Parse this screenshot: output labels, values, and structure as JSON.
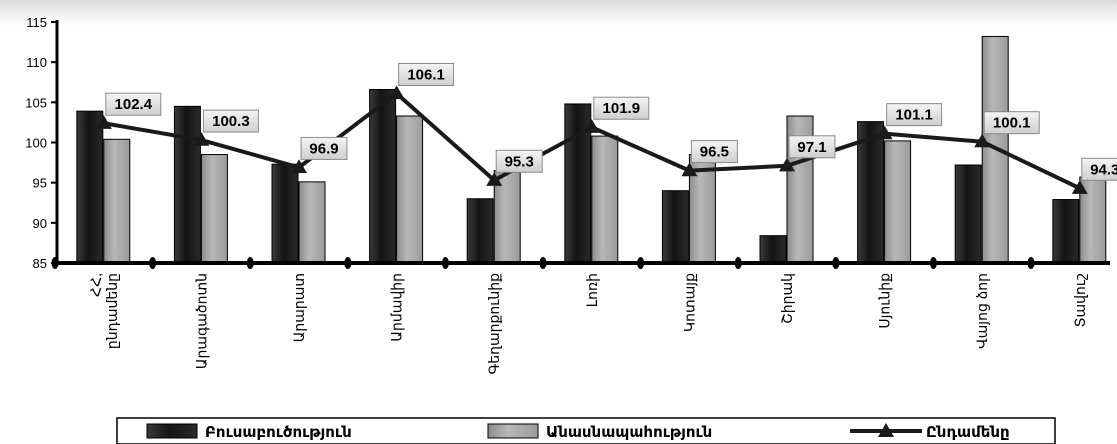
{
  "chart_data": {
    "type": "bar",
    "categories": [
      "ՀՀ,\nընդամենը",
      "Արագածոտն",
      "Արարատ",
      "Արմավիր",
      "Գեղարքունիք",
      "Լոռի",
      "Կոտայք",
      "Շիրակ",
      "Սյունիք",
      "Վայոց ձոր",
      "Տավուշ"
    ],
    "series": [
      {
        "name": "Բուսաբուծություն",
        "type": "bar",
        "color": "#1a1a1a",
        "values": [
          103.9,
          104.5,
          97.3,
          106.6,
          93.0,
          104.8,
          94.0,
          88.4,
          102.6,
          97.2,
          92.9
        ]
      },
      {
        "name": "Անասնապահություն",
        "type": "bar",
        "color": "#a6a6a6",
        "values": [
          100.4,
          98.5,
          95.1,
          103.3,
          96.5,
          100.8,
          98.5,
          103.3,
          100.2,
          113.2,
          95.7
        ]
      },
      {
        "name": "Ընդամենը",
        "type": "line",
        "color": "#1a1a1a",
        "values": [
          102.4,
          100.3,
          96.9,
          106.1,
          95.3,
          101.9,
          96.5,
          97.1,
          101.1,
          100.1,
          94.3
        ],
        "data_labels": [
          "102.4",
          "100.3",
          "96.9",
          "106.1",
          "95.3",
          "101.9",
          "96.5",
          "97.1",
          "101.1",
          "100.1",
          "94.3"
        ]
      }
    ],
    "ylim": [
      85,
      115
    ],
    "yticks": [
      "85",
      "90",
      "95",
      "100",
      "105",
      "110",
      "115"
    ],
    "grid": false,
    "legend_position": "bottom",
    "title": "",
    "xlabel": "",
    "ylabel": ""
  }
}
